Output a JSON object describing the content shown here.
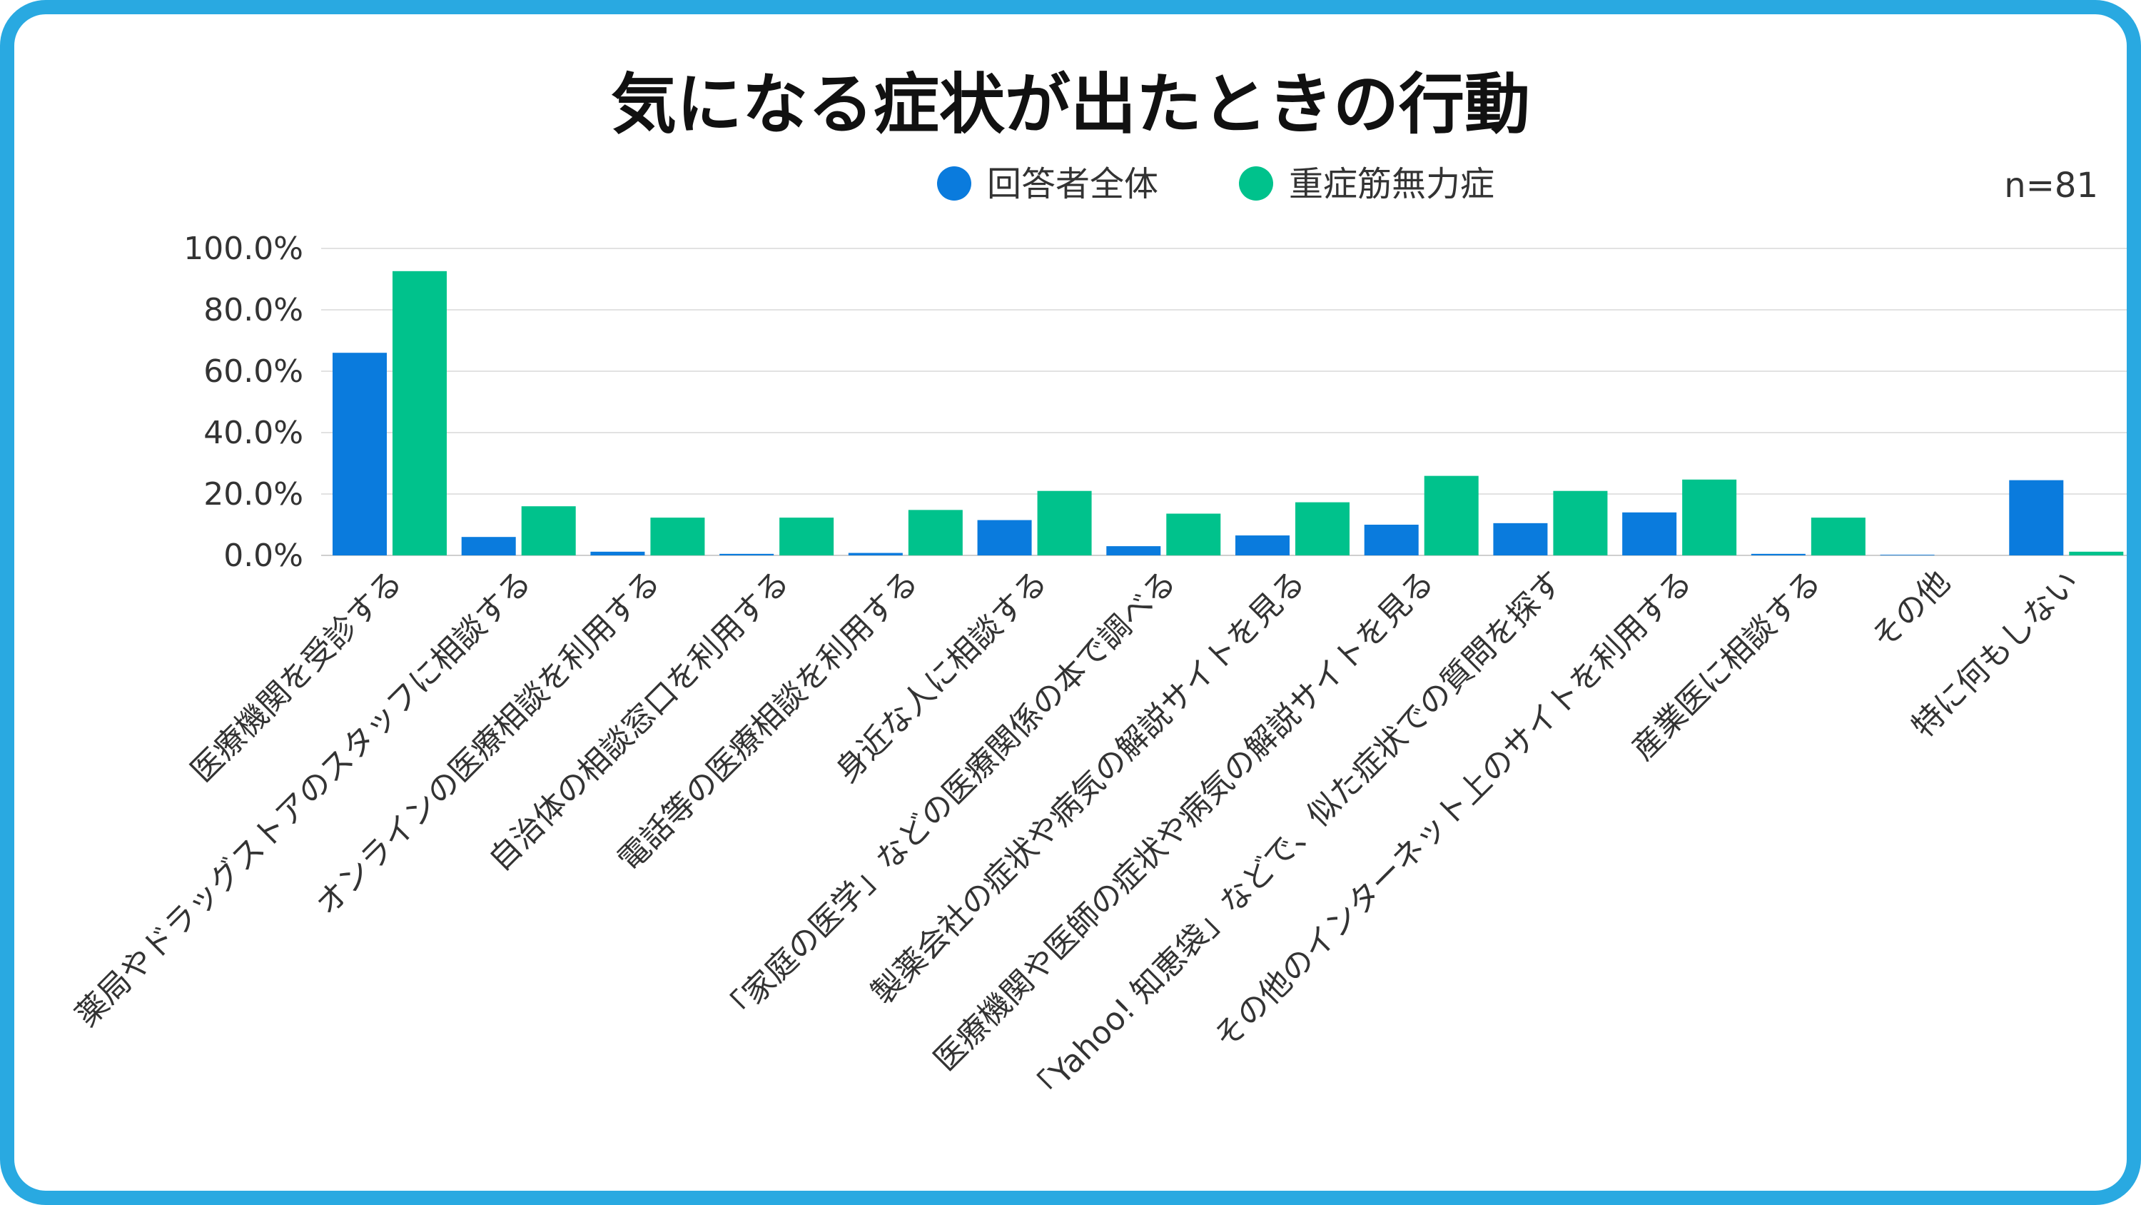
{
  "chart_data": {
    "type": "bar",
    "title": "気になる症状が出たときの行動",
    "note": "n=81",
    "legend_position": "top-center",
    "grid": true,
    "ylim": [
      0,
      100
    ],
    "yticks": [
      "0.0%",
      "20.0%",
      "40.0%",
      "60.0%",
      "80.0%",
      "100.0%"
    ],
    "categories": [
      "医療機関を受診する",
      "薬局やドラッグストアのスタッフに相談する",
      "オンラインの医療相談を利用する",
      "自治体の相談窓口を利用する",
      "電話等の医療相談を利用する",
      "身近な人に相談する",
      "「家庭の医学」などの医療関係の本で調べる",
      "製薬会社の症状や病気の解説サイトを見る",
      "医療機関や医師の症状や病気の解説サイトを見る",
      "「Yahoo! 知恵袋」などで、似た症状での質問を探す",
      "その他のインターネット上のサイトを利用する",
      "産業医に相談する",
      "その他",
      "特に何もしない"
    ],
    "series": [
      {
        "name": "回答者全体",
        "color": "#0a7bdd",
        "values": [
          66.0,
          6.0,
          1.2,
          0.5,
          0.8,
          11.5,
          3.0,
          6.5,
          10.0,
          10.5,
          14.0,
          0.5,
          0.2,
          24.5
        ]
      },
      {
        "name": "重症筋無力症",
        "color": "#00c28c",
        "values": [
          92.6,
          16.0,
          12.3,
          12.3,
          14.8,
          21.0,
          13.6,
          17.3,
          25.9,
          21.0,
          24.7,
          12.3,
          0.0,
          1.2
        ]
      }
    ]
  }
}
